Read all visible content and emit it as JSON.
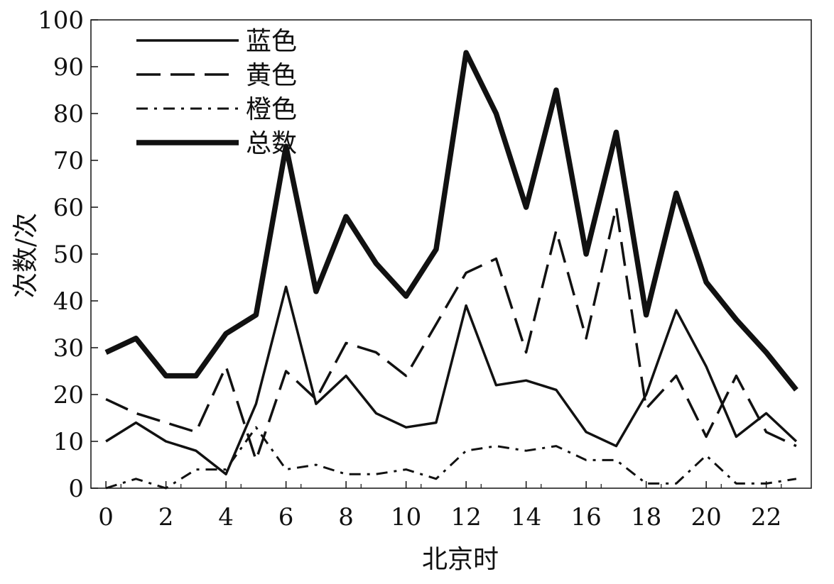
{
  "chart_data": {
    "type": "line",
    "xlabel": "北京时",
    "ylabel": "次数/次",
    "xlim": [
      -0.5,
      23.5
    ],
    "ylim": [
      0,
      100
    ],
    "xticks": [
      0,
      2,
      4,
      6,
      8,
      10,
      12,
      14,
      16,
      18,
      20,
      22
    ],
    "yticks": [
      0,
      10,
      20,
      30,
      40,
      50,
      60,
      70,
      80,
      90,
      100
    ],
    "grid": false,
    "legend_position": "top-left",
    "x": [
      0,
      1,
      2,
      3,
      4,
      5,
      6,
      7,
      8,
      9,
      10,
      11,
      12,
      13,
      14,
      15,
      16,
      17,
      18,
      19,
      20,
      21,
      22,
      23
    ],
    "series": [
      {
        "name": "蓝色",
        "style": "solid",
        "color": "#111111",
        "values": [
          10,
          14,
          10,
          8,
          3,
          18,
          43,
          18,
          24,
          16,
          13,
          14,
          39,
          22,
          23,
          21,
          12,
          9,
          20,
          38,
          26,
          11,
          16,
          10
        ]
      },
      {
        "name": "黄色",
        "style": "dashed",
        "color": "#111111",
        "values": [
          19,
          16,
          14,
          12,
          26,
          6,
          25,
          19,
          31,
          29,
          24,
          35,
          46,
          49,
          29,
          55,
          32,
          60,
          17,
          24,
          11,
          24,
          12,
          9
        ]
      },
      {
        "name": "橙色",
        "style": "dashdot",
        "color": "#111111",
        "values": [
          0,
          2,
          0,
          4,
          4,
          13,
          4,
          5,
          3,
          3,
          4,
          2,
          8,
          9,
          8,
          9,
          6,
          6,
          1,
          1,
          7,
          1,
          1,
          2
        ]
      },
      {
        "name": "总数",
        "style": "thick",
        "color": "#111111",
        "values": [
          29,
          32,
          24,
          24,
          33,
          37,
          73,
          42,
          58,
          48,
          41,
          51,
          93,
          80,
          60,
          85,
          50,
          76,
          37,
          63,
          44,
          36,
          29,
          21
        ]
      }
    ]
  }
}
